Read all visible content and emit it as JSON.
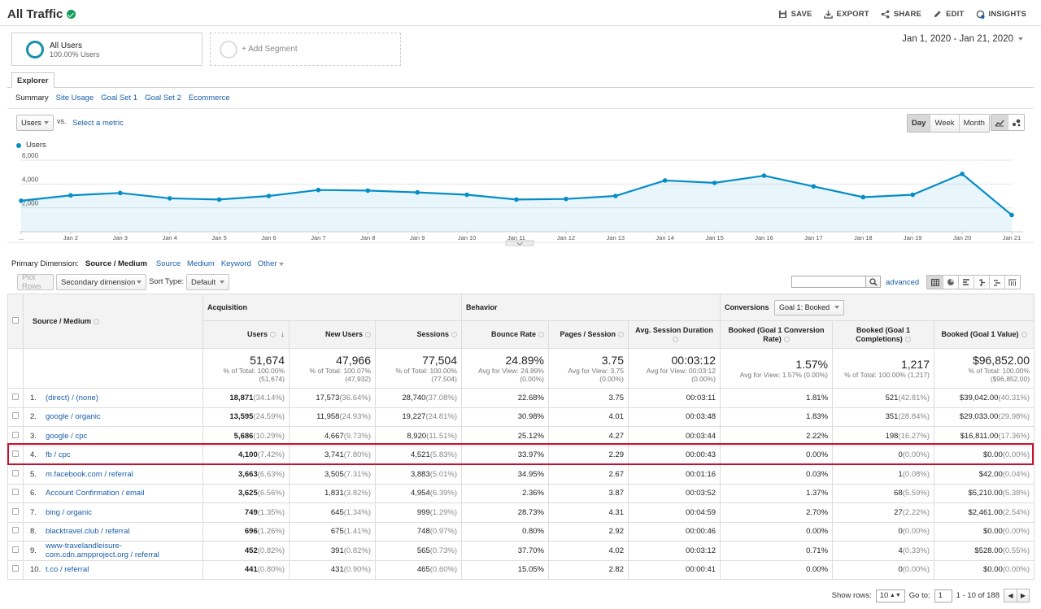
{
  "header": {
    "title": "All Traffic",
    "actions": [
      "SAVE",
      "EXPORT",
      "SHARE",
      "EDIT",
      "INSIGHTS"
    ]
  },
  "segments": {
    "active_name": "All Users",
    "active_sub": "100.00% Users",
    "add_label": "+ Add Segment"
  },
  "date_range": "Jan 1, 2020 - Jan 21, 2020",
  "explorer": {
    "tab": "Explorer",
    "subtabs": [
      "Summary",
      "Site Usage",
      "Goal Set 1",
      "Goal Set 2",
      "Ecommerce"
    ]
  },
  "chart_controls": {
    "metric": "Users",
    "vs": "vs.",
    "select_metric": "Select a metric",
    "periods": [
      "Day",
      "Week",
      "Month"
    ],
    "legend": "Users"
  },
  "chart_data": {
    "type": "area",
    "series": [
      {
        "name": "Users",
        "values": [
          2600,
          3050,
          3250,
          2800,
          2700,
          3000,
          3500,
          3450,
          3300,
          3100,
          2700,
          2750,
          3000,
          4300,
          4100,
          4700,
          3800,
          2900,
          3100,
          4850,
          1400
        ]
      }
    ],
    "x": [
      "...",
      "Jan 2",
      "Jan 3",
      "Jan 4",
      "Jan 5",
      "Jan 6",
      "Jan 7",
      "Jan 8",
      "Jan 9",
      "Jan 10",
      "Jan 11",
      "Jan 12",
      "Jan 13",
      "Jan 14",
      "Jan 15",
      "Jan 16",
      "Jan 17",
      "Jan 18",
      "Jan 19",
      "Jan 20",
      "Jan 21"
    ],
    "y_ticks": [
      "2,000",
      "4,000",
      "6,000"
    ],
    "ylim": [
      0,
      6000
    ],
    "color": "#058dc7"
  },
  "primary_dimension": {
    "label": "Primary Dimension:",
    "active": "Source / Medium",
    "options": [
      "Source",
      "Medium",
      "Keyword",
      "Other"
    ]
  },
  "toolbar": {
    "plot_rows": "Plot Rows",
    "secondary": "Secondary dimension",
    "sort_type_label": "Sort Type:",
    "sort_type": "Default",
    "advanced": "advanced"
  },
  "table": {
    "dimension_header": "Source / Medium",
    "groups": {
      "acquisition": "Acquisition",
      "behavior": "Behavior",
      "conversions": "Conversions",
      "goal_select": "Goal 1: Booked"
    },
    "columns": [
      "Users",
      "New Users",
      "Sessions",
      "Bounce Rate",
      "Pages / Session",
      "Avg. Session Duration",
      "Booked (Goal 1 Conversion Rate)",
      "Booked (Goal 1 Completions)",
      "Booked (Goal 1 Value)"
    ],
    "totals": [
      {
        "big": "51,674",
        "small1": "% of Total: 100.00%",
        "small2": "(51,674)"
      },
      {
        "big": "47,966",
        "small1": "% of Total: 100.07%",
        "small2": "(47,932)"
      },
      {
        "big": "77,504",
        "small1": "% of Total: 100.00%",
        "small2": "(77,504)"
      },
      {
        "big": "24.89%",
        "small1": "Avg for View: 24.89%",
        "small2": "(0.00%)"
      },
      {
        "big": "3.75",
        "small1": "Avg for View: 3.75",
        "small2": "(0.00%)"
      },
      {
        "big": "00:03:12",
        "small1": "Avg for View: 00:03:12",
        "small2": "(0.00%)"
      },
      {
        "big": "1.57%",
        "small1": "Avg for View: 1.57% (0.00%)",
        "small2": ""
      },
      {
        "big": "1,217",
        "small1": "% of Total: 100.00% (1,217)",
        "small2": ""
      },
      {
        "big": "$96,852.00",
        "small1": "% of Total: 100.00%",
        "small2": "($96,852.00)"
      }
    ],
    "rows": [
      {
        "idx": "1.",
        "source": "(direct) / (none)",
        "users": "18,871",
        "users_p": "(34.14%)",
        "new": "17,573",
        "new_p": "(36.64%)",
        "sessions": "28,740",
        "sessions_p": "(37.08%)",
        "bounce": "22.68%",
        "pages": "3.75",
        "dur": "00:03:11",
        "conv": "1.81%",
        "comp": "521",
        "comp_p": "(42.81%)",
        "value": "$39,042.00",
        "value_p": "(40.31%)"
      },
      {
        "idx": "2.",
        "source": "google / organic",
        "users": "13,595",
        "users_p": "(24.59%)",
        "new": "11,958",
        "new_p": "(24.93%)",
        "sessions": "19,227",
        "sessions_p": "(24.81%)",
        "bounce": "30.98%",
        "pages": "4.01",
        "dur": "00:03:48",
        "conv": "1.83%",
        "comp": "351",
        "comp_p": "(28.84%)",
        "value": "$29,033.00",
        "value_p": "(29.98%)"
      },
      {
        "idx": "3.",
        "source": "google / cpc",
        "users": "5,686",
        "users_p": "(10.29%)",
        "new": "4,667",
        "new_p": "(9.73%)",
        "sessions": "8,920",
        "sessions_p": "(11.51%)",
        "bounce": "25.12%",
        "pages": "4.27",
        "dur": "00:03:44",
        "conv": "2.22%",
        "comp": "198",
        "comp_p": "(16.27%)",
        "value": "$16,811.00",
        "value_p": "(17.36%)"
      },
      {
        "idx": "4.",
        "source": "fb / cpc",
        "users": "4,100",
        "users_p": "(7.42%)",
        "new": "3,741",
        "new_p": "(7.80%)",
        "sessions": "4,521",
        "sessions_p": "(5.83%)",
        "bounce": "33.97%",
        "pages": "2.29",
        "dur": "00:00:43",
        "conv": "0.00%",
        "comp": "0",
        "comp_p": "(0.00%)",
        "value": "$0.00",
        "value_p": "(0.00%)"
      },
      {
        "idx": "5.",
        "source": "m.facebook.com / referral",
        "users": "3,663",
        "users_p": "(6.63%)",
        "new": "3,505",
        "new_p": "(7.31%)",
        "sessions": "3,883",
        "sessions_p": "(5.01%)",
        "bounce": "34.95%",
        "pages": "2.67",
        "dur": "00:01:16",
        "conv": "0.03%",
        "comp": "1",
        "comp_p": "(0.08%)",
        "value": "$42.00",
        "value_p": "(0.04%)"
      },
      {
        "idx": "6.",
        "source": "Account Confirmation / email",
        "users": "3,625",
        "users_p": "(6.56%)",
        "new": "1,831",
        "new_p": "(3.82%)",
        "sessions": "4,954",
        "sessions_p": "(6.39%)",
        "bounce": "2.36%",
        "pages": "3.87",
        "dur": "00:03:52",
        "conv": "1.37%",
        "comp": "68",
        "comp_p": "(5.59%)",
        "value": "$5,210.00",
        "value_p": "(5.38%)"
      },
      {
        "idx": "7.",
        "source": "bing / organic",
        "users": "749",
        "users_p": "(1.35%)",
        "new": "645",
        "new_p": "(1.34%)",
        "sessions": "999",
        "sessions_p": "(1.29%)",
        "bounce": "28.73%",
        "pages": "4.31",
        "dur": "00:04:59",
        "conv": "2.70%",
        "comp": "27",
        "comp_p": "(2.22%)",
        "value": "$2,461.00",
        "value_p": "(2.54%)"
      },
      {
        "idx": "8.",
        "source": "blacktravel.club / referral",
        "users": "696",
        "users_p": "(1.26%)",
        "new": "675",
        "new_p": "(1.41%)",
        "sessions": "748",
        "sessions_p": "(0.97%)",
        "bounce": "0.80%",
        "pages": "2.92",
        "dur": "00:00:46",
        "conv": "0.00%",
        "comp": "0",
        "comp_p": "(0.00%)",
        "value": "$0.00",
        "value_p": "(0.00%)"
      },
      {
        "idx": "9.",
        "source": "www-travelandleisure-com.cdn.ampproject.org / referral",
        "users": "452",
        "users_p": "(0.82%)",
        "new": "391",
        "new_p": "(0.82%)",
        "sessions": "565",
        "sessions_p": "(0.73%)",
        "bounce": "37.70%",
        "pages": "4.02",
        "dur": "00:03:12",
        "conv": "0.71%",
        "comp": "4",
        "comp_p": "(0.33%)",
        "value": "$528.00",
        "value_p": "(0.55%)"
      },
      {
        "idx": "10.",
        "source": "t.co / referral",
        "users": "441",
        "users_p": "(0.80%)",
        "new": "431",
        "new_p": "(0.90%)",
        "sessions": "465",
        "sessions_p": "(0.60%)",
        "bounce": "15.05%",
        "pages": "2.82",
        "dur": "00:00:41",
        "conv": "0.00%",
        "comp": "0",
        "comp_p": "(0.00%)",
        "value": "$0.00",
        "value_p": "(0.00%)"
      }
    ]
  },
  "pagination": {
    "show_rows_label": "Show rows:",
    "rows_value": "10",
    "goto_label": "Go to:",
    "goto_value": "1",
    "range": "1 - 10 of 188"
  },
  "colors": {
    "accent": "#058dc7",
    "link": "#1a5ea8",
    "highlight": "#c8102e",
    "verified": "#0f9d58"
  },
  "icons": [
    "verified-check-icon",
    "save-icon",
    "export-icon",
    "share-icon",
    "edit-icon",
    "insights-icon",
    "line-chart-icon",
    "motion-chart-icon",
    "search-icon",
    "table-view-icon",
    "pie-view-icon",
    "performance-view-icon",
    "comparison-view-icon",
    "term-cloud-icon",
    "pivot-view-icon"
  ]
}
